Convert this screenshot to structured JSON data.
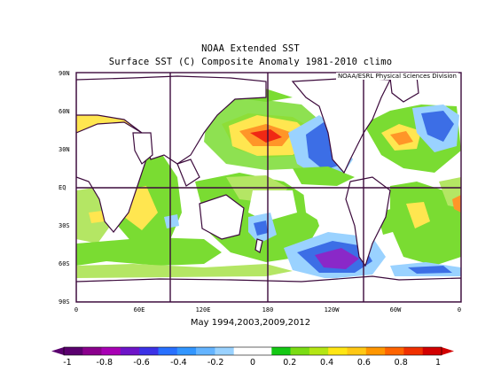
{
  "title": "NOAA Extended SST",
  "subtitle": "Surface SST (C) Composite Anomaly 1981-2010 climo",
  "credit": "NOAA/ESRL Physical Sciences Division",
  "date_label": "May 1994,2003,2009,2012",
  "lat_labels": [
    "90N",
    "60N",
    "30N",
    "EQ",
    "30S",
    "60S",
    "90S"
  ],
  "lon_labels": [
    "0",
    "60E",
    "120E",
    "180",
    "120W",
    "60W",
    "0"
  ],
  "colorbar": {
    "labels": [
      "-1",
      "-0.8",
      "-0.6",
      "-0.4",
      "-0.2",
      "0",
      "0.2",
      "0.4",
      "0.6",
      "0.8",
      "1"
    ],
    "colors": [
      "#5a006e",
      "#8a008c",
      "#a800b4",
      "#6e14c8",
      "#3c32e6",
      "#2870ff",
      "#3296ff",
      "#64b4ff",
      "#9ad2ff",
      "#ffffff",
      "#ffffff",
      "#14c814",
      "#7adc14",
      "#b4e614",
      "#ffe614",
      "#ffc814",
      "#ff9600",
      "#ff6400",
      "#f03000",
      "#d20000"
    ]
  },
  "map_colors": {
    "land_outline": "#3c0a3c",
    "grid": "#3c0a3c",
    "green": "#7adc32",
    "lightgreen": "#b4e664",
    "yellow": "#ffe650",
    "orange": "#ff9628",
    "red": "#f02814",
    "lightblue": "#9ad2ff",
    "blue": "#3c6ee6",
    "darkblue": "#3232dc",
    "purple": "#8a28c8"
  }
}
